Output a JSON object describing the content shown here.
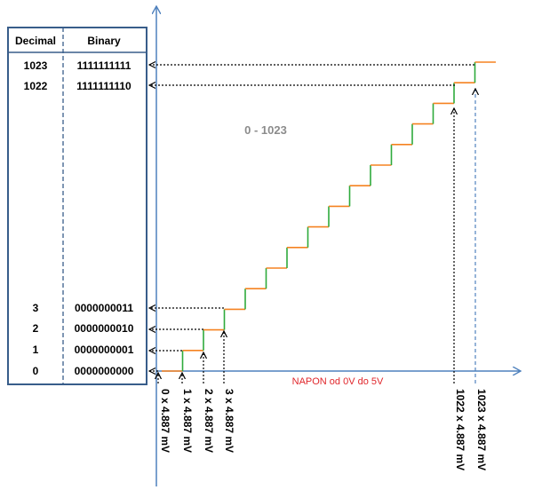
{
  "table": {
    "headers": {
      "decimal": "Decimal",
      "binary": "Binary"
    },
    "rows": [
      {
        "decimal": "1023",
        "binary": "1111111111"
      },
      {
        "decimal": "1022",
        "binary": "1111111110"
      },
      {
        "decimal": "3",
        "binary": "0000000011"
      },
      {
        "decimal": "2",
        "binary": "0000000010"
      },
      {
        "decimal": "1",
        "binary": "0000000001"
      },
      {
        "decimal": "0",
        "binary": "0000000000"
      }
    ]
  },
  "diagram": {
    "range_label": "0 - 1023",
    "x_axis_label": "NAPON od 0V do 5V",
    "voltage_labels": [
      "0 x 4.887 mV",
      "1 x 4.887 mV",
      "2 x 4.887 mV",
      "3 x 4.887 mV",
      "1022 x 4.887 mV",
      "1023 x 4.887 mV"
    ]
  },
  "colors": {
    "axis": "#4f81bd",
    "table_border": "#385d8a",
    "riser": "#2eaa3c",
    "tread": "#f58220",
    "x_label": "#e0262b",
    "range_label": "#8c8c8c"
  }
}
